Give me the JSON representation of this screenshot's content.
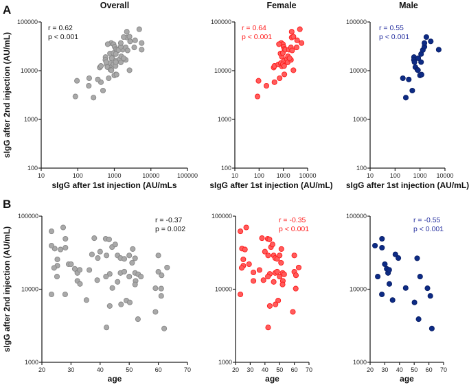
{
  "figure": {
    "panel_letters": [
      "A",
      "B"
    ]
  },
  "colors": {
    "overall_fill": "#a9a9a9",
    "overall_stroke": "#878787",
    "female_fill": "#ff5c5c",
    "female_stroke": "#ff1a1a",
    "male_fill": "#0d2b85",
    "male_stroke": "#0a1f66",
    "female_text": "#ff1a1a",
    "male_text": "#232d9e",
    "overall_text": "#111111"
  },
  "chart_data": [
    {
      "id": "A-overall",
      "type": "scatter",
      "title": "Overall",
      "xlabel": "sIgG after 1st injection (AU/mLs",
      "ylabel": "sIgG after 2nd injection (AU/mL)",
      "xscale": "log",
      "yscale": "log",
      "xlim": [
        10,
        100000
      ],
      "ylim": [
        100,
        100000
      ],
      "xticks": [
        "10",
        "100",
        "1000",
        "10000",
        "100000"
      ],
      "yticks": [
        "100",
        "1000",
        "10000",
        "100000"
      ],
      "annotation": [
        "r = 0.62",
        "p < 0.001"
      ],
      "combine": [
        "A-female",
        "A-male"
      ],
      "color": "overall"
    },
    {
      "id": "A-female",
      "type": "scatter",
      "title": "Female",
      "xlabel": "sIgG after 1st injection (AU/mL)",
      "ylabel": "",
      "xscale": "log",
      "yscale": "log",
      "xlim": [
        10,
        10000
      ],
      "ylim": [
        100,
        100000
      ],
      "xticks": [
        "10",
        "100",
        "1000",
        "10000"
      ],
      "yticks": [
        "100",
        "1000",
        "10000",
        "100000"
      ],
      "annotation": [
        "r = 0.64",
        "p < 0.001"
      ],
      "color": "female",
      "points": [
        [
          86,
          2950
        ],
        [
          95,
          6200
        ],
        [
          200,
          4900
        ],
        [
          430,
          5800
        ],
        [
          400,
          11600
        ],
        [
          430,
          12500
        ],
        [
          700,
          7000
        ],
        [
          1100,
          8400
        ],
        [
          2600,
          10200
        ],
        [
          620,
          13400
        ],
        [
          780,
          14300
        ],
        [
          870,
          12300
        ],
        [
          870,
          19400
        ],
        [
          760,
          22500
        ],
        [
          950,
          23000
        ],
        [
          820,
          37000
        ],
        [
          950,
          35000
        ],
        [
          660,
          35000
        ],
        [
          1020,
          31000
        ],
        [
          1110,
          28000
        ],
        [
          1200,
          27000
        ],
        [
          1080,
          16000
        ],
        [
          950,
          13500
        ],
        [
          1080,
          12500
        ],
        [
          1400,
          17200
        ],
        [
          1550,
          19700
        ],
        [
          1500,
          14800
        ],
        [
          1700,
          27000
        ],
        [
          2050,
          30000
        ],
        [
          2050,
          16700
        ],
        [
          2300,
          26000
        ],
        [
          2200,
          63000
        ],
        [
          2200,
          48000
        ],
        [
          2600,
          50000
        ],
        [
          3500,
          30000
        ],
        [
          3700,
          42000
        ],
        [
          4800,
          71000
        ],
        [
          5600,
          37000
        ],
        [
          1800,
          18000
        ]
      ]
    },
    {
      "id": "A-male",
      "type": "scatter",
      "title": "Male",
      "xlabel": "sIgG after 1st injection (AU/mL)",
      "ylabel": "",
      "xscale": "log",
      "yscale": "log",
      "xlim": [
        10,
        10000
      ],
      "ylim": [
        100,
        100000
      ],
      "xticks": [
        "10",
        "100",
        "1000",
        "10000"
      ],
      "yticks": [
        "100",
        "1000",
        "10000",
        "100000"
      ],
      "annotation": [
        "r = 0.55",
        "p < 0.001"
      ],
      "color": "male",
      "points": [
        [
          205,
          7000
        ],
        [
          355,
          6600
        ],
        [
          270,
          2800
        ],
        [
          490,
          3900
        ],
        [
          575,
          19000
        ],
        [
          570,
          16700
        ],
        [
          600,
          15000
        ],
        [
          650,
          11800
        ],
        [
          790,
          10400
        ],
        [
          830,
          10200
        ],
        [
          850,
          18000
        ],
        [
          1000,
          8000
        ],
        [
          1150,
          8300
        ],
        [
          1100,
          15000
        ],
        [
          1100,
          22000
        ],
        [
          1300,
          26500
        ],
        [
          1500,
          31000
        ],
        [
          1500,
          37000
        ],
        [
          1800,
          49000
        ],
        [
          2700,
          40000
        ],
        [
          5600,
          27000
        ]
      ]
    },
    {
      "id": "B-overall",
      "type": "scatter",
      "title": "",
      "xlabel": "age",
      "ylabel": "sIgG after 2nd injection (AU/mL)",
      "xscale": "linear",
      "yscale": "log",
      "xlim": [
        20,
        70
      ],
      "ylim": [
        1000,
        100000
      ],
      "xticks": [
        "20",
        "30",
        "40",
        "50",
        "60",
        "70"
      ],
      "yticks": [
        "1000",
        "10000",
        "100000"
      ],
      "annotation": [
        "r = -0.37",
        "p = 0.002"
      ],
      "combine": [
        "B-female",
        "B-male"
      ],
      "color": "overall"
    },
    {
      "id": "B-female",
      "type": "scatter",
      "title": "",
      "xlabel": "age",
      "ylabel": "",
      "xscale": "linear",
      "yscale": "log",
      "xlim": [
        20,
        70
      ],
      "ylim": [
        1000,
        100000
      ],
      "xticks": [
        "20",
        "30",
        "40",
        "50",
        "60",
        "70"
      ],
      "yticks": [
        "1000",
        "10000",
        "100000"
      ],
      "annotation": [
        "r = -0.35",
        "p < 0.001"
      ],
      "color": "female",
      "points": [
        [
          23.3,
          62000
        ],
        [
          27.3,
          70000
        ],
        [
          24.4,
          36000
        ],
        [
          26.4,
          35000
        ],
        [
          25.3,
          25600
        ],
        [
          29.2,
          22000
        ],
        [
          25.3,
          21000
        ],
        [
          24.2,
          19600
        ],
        [
          32.2,
          17000
        ],
        [
          36.3,
          18300
        ],
        [
          32.2,
          13000
        ],
        [
          39,
          13300
        ],
        [
          23.3,
          8500
        ],
        [
          38,
          50000
        ],
        [
          40,
          32700
        ],
        [
          41.9,
          49000
        ],
        [
          43.1,
          48000
        ],
        [
          44.1,
          37700
        ],
        [
          45.2,
          41000
        ],
        [
          42.2,
          29000
        ],
        [
          43.3,
          16200
        ],
        [
          42,
          14900
        ],
        [
          46,
          29000
        ],
        [
          47,
          26700
        ],
        [
          48.3,
          26000
        ],
        [
          47,
          16700
        ],
        [
          48.3,
          17400
        ],
        [
          46,
          12600
        ],
        [
          50,
          29000
        ],
        [
          51.2,
          35500
        ],
        [
          51,
          23000
        ],
        [
          50,
          14900
        ],
        [
          52,
          16700
        ],
        [
          53.1,
          16000
        ],
        [
          52.2,
          13000
        ],
        [
          52,
          11600
        ],
        [
          49,
          7000
        ],
        [
          47.2,
          6200
        ],
        [
          43.3,
          5900
        ],
        [
          42.2,
          3000
        ],
        [
          60,
          29000
        ],
        [
          60,
          17300
        ],
        [
          61.1,
          15500
        ],
        [
          61,
          10200
        ],
        [
          63,
          19800
        ],
        [
          59,
          4900
        ]
      ]
    },
    {
      "id": "B-male",
      "type": "scatter",
      "title": "",
      "xlabel": "age",
      "ylabel": "",
      "xscale": "linear",
      "yscale": "log",
      "xlim": [
        20,
        70
      ],
      "ylim": [
        1000,
        100000
      ],
      "xticks": [
        "20",
        "30",
        "40",
        "50",
        "60",
        "70"
      ],
      "yticks": [
        "1000",
        "10000",
        "100000"
      ],
      "annotation": [
        "r = -0.55",
        "p < 0.001"
      ],
      "color": "male",
      "points": [
        [
          23.3,
          39500
        ],
        [
          28.1,
          49000
        ],
        [
          28.1,
          37000
        ],
        [
          25.2,
          14900
        ],
        [
          28,
          8500
        ],
        [
          30,
          22000
        ],
        [
          31.3,
          19000
        ],
        [
          32.2,
          16700
        ],
        [
          33,
          18400
        ],
        [
          33.1,
          11800
        ],
        [
          35.3,
          7100
        ],
        [
          37.2,
          30000
        ],
        [
          39.2,
          26700
        ],
        [
          44.2,
          10400
        ],
        [
          50.2,
          6600
        ],
        [
          52,
          26500
        ],
        [
          53,
          3900
        ],
        [
          54,
          14900
        ],
        [
          59,
          10300
        ],
        [
          61,
          8100
        ],
        [
          62,
          2900
        ]
      ]
    }
  ]
}
